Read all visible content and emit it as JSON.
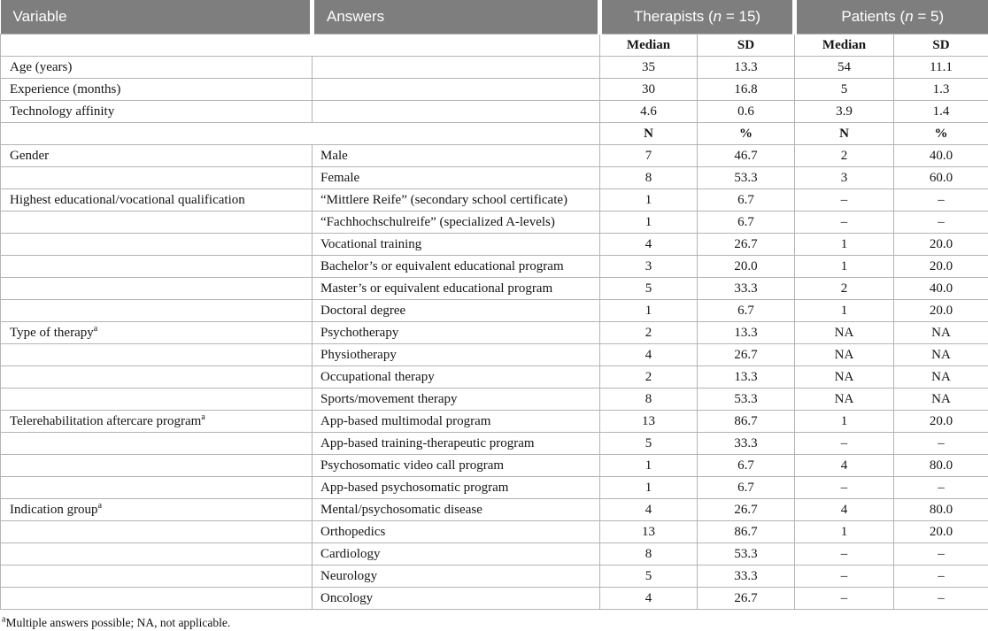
{
  "table": {
    "header": {
      "variable": "Variable",
      "answers": "Answers",
      "therapists": {
        "pre": "Therapists (",
        "n": "n",
        "post": " = 15)"
      },
      "patients": {
        "pre": "Patients (",
        "n": "n",
        "post": " = 5)"
      }
    },
    "rows": [
      {
        "kind": "stats",
        "cells": [
          "Median",
          "SD",
          "Median",
          "SD"
        ]
      },
      {
        "kind": "data",
        "variable": "Age (years)",
        "answer": "",
        "values": [
          "35",
          "13.3",
          "54",
          "11.1"
        ]
      },
      {
        "kind": "data",
        "variable": "Experience (months)",
        "answer": "",
        "values": [
          "30",
          "16.8",
          "5",
          "1.3"
        ]
      },
      {
        "kind": "data",
        "variable": "Technology affinity",
        "answer": "",
        "values": [
          "4.6",
          "0.6",
          "3.9",
          "1.4"
        ]
      },
      {
        "kind": "stats",
        "cells": [
          "N",
          "%",
          "N",
          "%"
        ]
      },
      {
        "kind": "data",
        "variable": "Gender",
        "answer": "Male",
        "values": [
          "7",
          "46.7",
          "2",
          "40.0"
        ]
      },
      {
        "kind": "data",
        "variable": "",
        "answer": "Female",
        "values": [
          "8",
          "53.3",
          "3",
          "60.0"
        ]
      },
      {
        "kind": "data",
        "variable": "Highest educational/vocational qualification",
        "answer": "“Mittlere Reife” (secondary school certificate)",
        "values": [
          "1",
          "6.7",
          "–",
          "–"
        ]
      },
      {
        "kind": "data",
        "variable": "",
        "answer": "“Fachhochschulreife” (specialized A-levels)",
        "values": [
          "1",
          "6.7",
          "–",
          "–"
        ]
      },
      {
        "kind": "data",
        "variable": "",
        "answer": "Vocational training",
        "values": [
          "4",
          "26.7",
          "1",
          "20.0"
        ]
      },
      {
        "kind": "data",
        "variable": "",
        "answer": "Bachelor’s or equivalent educational program",
        "values": [
          "3",
          "20.0",
          "1",
          "20.0"
        ]
      },
      {
        "kind": "data",
        "variable": "",
        "answer": "Master’s or equivalent educational program",
        "values": [
          "5",
          "33.3",
          "2",
          "40.0"
        ]
      },
      {
        "kind": "data",
        "variable": "",
        "answer": "Doctoral degree",
        "values": [
          "1",
          "6.7",
          "1",
          "20.0"
        ]
      },
      {
        "kind": "data",
        "variable": "Type of therapy",
        "sup": "a",
        "answer": "Psychotherapy",
        "values": [
          "2",
          "13.3",
          "NA",
          "NA"
        ]
      },
      {
        "kind": "data",
        "variable": "",
        "answer": "Physiotherapy",
        "values": [
          "4",
          "26.7",
          "NA",
          "NA"
        ]
      },
      {
        "kind": "data",
        "variable": "",
        "answer": "Occupational therapy",
        "values": [
          "2",
          "13.3",
          "NA",
          "NA"
        ]
      },
      {
        "kind": "data",
        "variable": "",
        "answer": "Sports/movement therapy",
        "values": [
          "8",
          "53.3",
          "NA",
          "NA"
        ]
      },
      {
        "kind": "data",
        "variable": "Telerehabilitation aftercare program",
        "sup": "a",
        "answer": "App-based multimodal program",
        "values": [
          "13",
          "86.7",
          "1",
          "20.0"
        ]
      },
      {
        "kind": "data",
        "variable": "",
        "answer": "App-based training-therapeutic program",
        "values": [
          "5",
          "33.3",
          "–",
          "–"
        ]
      },
      {
        "kind": "data",
        "variable": "",
        "answer": "Psychosomatic video call program",
        "values": [
          "1",
          "6.7",
          "4",
          "80.0"
        ]
      },
      {
        "kind": "data",
        "variable": "",
        "answer": "App-based psychosomatic program",
        "values": [
          "1",
          "6.7",
          "–",
          "–"
        ]
      },
      {
        "kind": "data",
        "variable": "Indication group",
        "sup": "a",
        "answer": "Mental/psychosomatic disease",
        "values": [
          "4",
          "26.7",
          "4",
          "80.0"
        ]
      },
      {
        "kind": "data",
        "variable": "",
        "answer": "Orthopedics",
        "values": [
          "13",
          "86.7",
          "1",
          "20.0"
        ]
      },
      {
        "kind": "data",
        "variable": "",
        "answer": "Cardiology",
        "values": [
          "8",
          "53.3",
          "–",
          "–"
        ]
      },
      {
        "kind": "data",
        "variable": "",
        "answer": "Neurology",
        "values": [
          "5",
          "33.3",
          "–",
          "–"
        ]
      },
      {
        "kind": "data",
        "variable": "",
        "answer": "Oncology",
        "values": [
          "4",
          "26.7",
          "–",
          "–"
        ]
      }
    ]
  },
  "footnote": {
    "marker": "a",
    "text": "Multiple answers possible; NA, not applicable."
  },
  "colors": {
    "header_bg": "#7e7e7e",
    "header_text": "#ffffff",
    "border": "#b4b4b4",
    "body_text": "#151515"
  }
}
